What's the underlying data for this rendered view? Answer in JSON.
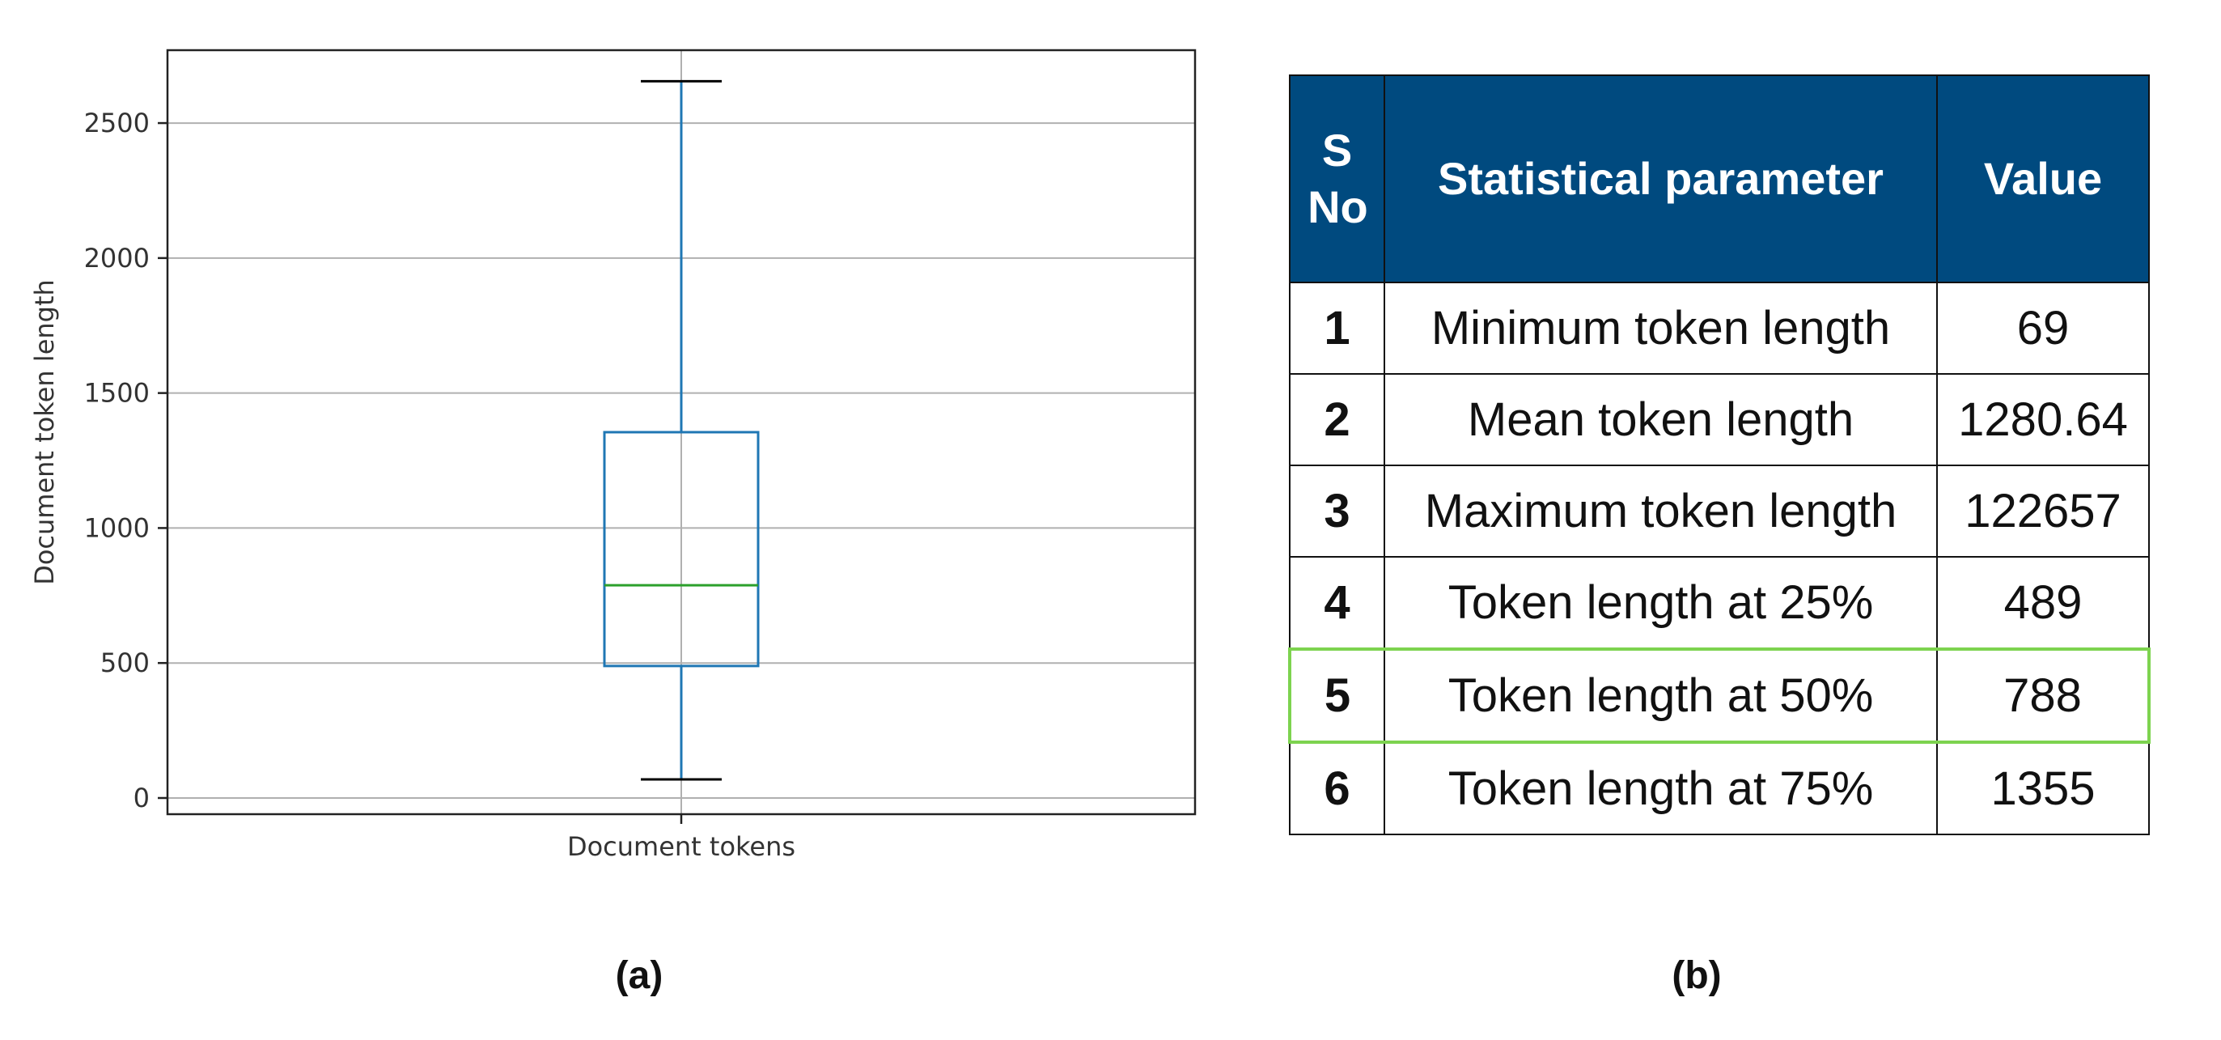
{
  "chart_data": {
    "type": "box",
    "ylabel": "Document token length",
    "xlabel": "",
    "category": "Document tokens",
    "ylim": [
      -60,
      2770
    ],
    "yticks": [
      0,
      500,
      1000,
      1500,
      2000,
      2500
    ],
    "grid": true,
    "box": {
      "whisker_low": 69,
      "q1": 489,
      "median": 788,
      "q3": 1355,
      "whisker_high": 2655
    },
    "colors": {
      "box": "#1f77b4",
      "median": "#2ca02c",
      "whisker": "#1f77b4",
      "cap": "#000000",
      "grid": "#b0b0b0"
    }
  },
  "panel_labels": {
    "a": "(a)",
    "b": "(b)"
  },
  "table": {
    "headers": {
      "sno": "S No",
      "parameter": "Statistical parameter",
      "value": "Value"
    },
    "rows": [
      {
        "sno": "1",
        "parameter": "Minimum token length",
        "value": "69"
      },
      {
        "sno": "2",
        "parameter": "Mean token length",
        "value": "1280.64"
      },
      {
        "sno": "3",
        "parameter": "Maximum token length",
        "value": "122657"
      },
      {
        "sno": "4",
        "parameter": "Token length at 25%",
        "value": "489"
      },
      {
        "sno": "5",
        "parameter": "Token length at 50%",
        "value": "788"
      },
      {
        "sno": "6",
        "parameter": "Token length at 75%",
        "value": "1355"
      }
    ],
    "highlighted_row": 4,
    "colors": {
      "header_bg": "#004a7f",
      "header_text": "#ffffff",
      "highlight": "#7dd34f"
    }
  }
}
